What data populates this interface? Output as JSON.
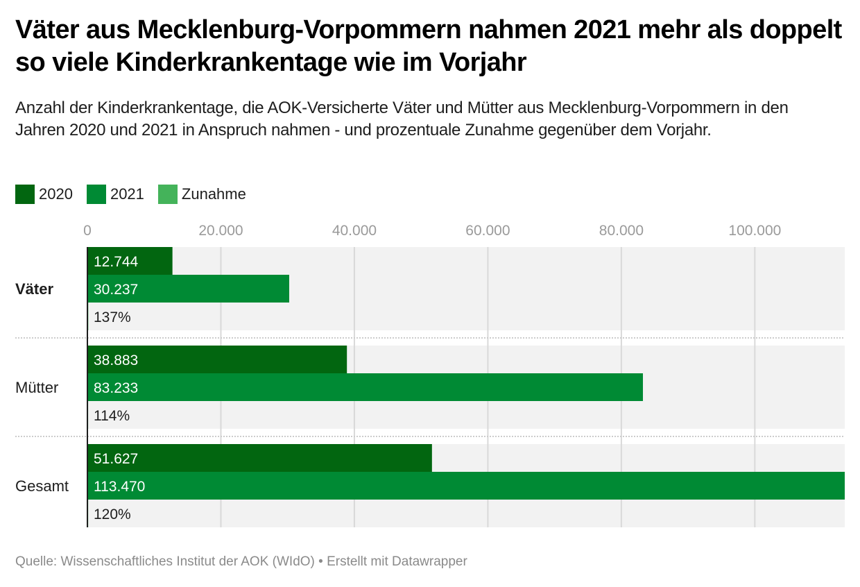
{
  "header": {
    "title": "Väter aus Mecklenburg-Vorpommern nahmen 2021 mehr als doppelt so viele Kinderkrankentage wie im Vorjahr",
    "subtitle": "Anzahl der Kinderkrankentage, die AOK-Versicherte Väter und Mütter aus Mecklenburg-Vorpommern in den Jahren 2020 und 2021 in Anspruch nahmen - und prozentuale Zunahme gegenüber dem Vorjahr."
  },
  "footer": {
    "text": "Quelle: Wissenschaftliches Institut der AOK (WIdO) • Erstellt mit Datawrapper"
  },
  "colors": {
    "series_2020": "#026610",
    "series_2021": "#008a34",
    "series_zunahme": "#44b35a",
    "plot_background": "#f2f2f2",
    "gridline": "#d9d9d9",
    "baseline": "#1d1d1d",
    "separator": "#cccccc"
  },
  "chart_data": {
    "type": "bar",
    "orientation": "horizontal",
    "grouped": true,
    "title": "Väter aus Mecklenburg-Vorpommern nahmen 2021 mehr als doppelt so viele Kinderkrankentage wie im Vorjahr",
    "xlabel": "",
    "ylabel": "",
    "categories": [
      "Väter",
      "Mütter",
      "Gesamt"
    ],
    "highlighted_category": "Väter",
    "series": [
      {
        "name": "2020",
        "values": [
          12744,
          38883,
          51627
        ],
        "labels": [
          "12.744",
          "38.883",
          "51.627"
        ],
        "label_color": "#ffffff"
      },
      {
        "name": "2021",
        "values": [
          30237,
          83233,
          113470
        ],
        "labels": [
          "30.237",
          "83.233",
          "113.470"
        ],
        "label_color": "#ffffff"
      },
      {
        "name": "Zunahme",
        "values": [
          137,
          114,
          120
        ],
        "labels": [
          "137%",
          "114%",
          "120%"
        ],
        "label_color": "#1d1d1d"
      }
    ],
    "xlim": [
      0,
      113470
    ],
    "xticks": [
      0,
      20000,
      40000,
      60000,
      80000,
      100000
    ],
    "xtick_labels": [
      "0",
      "20.000",
      "40.000",
      "60.000",
      "80.000",
      "100.000"
    ],
    "grid": true,
    "legend": {
      "placement": "top-left",
      "entries": [
        "2020",
        "2021",
        "Zunahme"
      ]
    }
  }
}
